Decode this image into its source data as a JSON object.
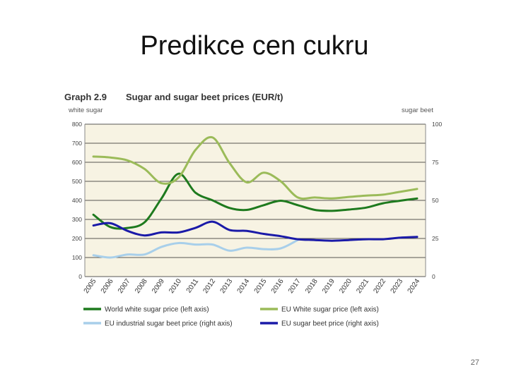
{
  "slide": {
    "title": "Predikce cen cukru",
    "page_number": "27"
  },
  "chart_data": {
    "type": "line",
    "graph_number": "Graph 2.9",
    "title": "Sugar and sugar beet prices (EUR/t)",
    "left_axis_label": "white sugar",
    "right_axis_label": "sugar beet",
    "x": [
      "2005",
      "2006",
      "2007",
      "2008",
      "2009",
      "2010",
      "2011",
      "2012",
      "2013",
      "2014",
      "2015",
      "2016",
      "2017",
      "2018",
      "2019",
      "2020",
      "2021",
      "2022",
      "2023",
      "2024"
    ],
    "ylim_left": [
      0,
      800
    ],
    "yticks_left": [
      "0",
      "100",
      "200",
      "300",
      "400",
      "500",
      "600",
      "700",
      "800"
    ],
    "ylim_right": [
      0,
      100
    ],
    "yticks_right": [
      "0",
      "25",
      "50",
      "75",
      "100"
    ],
    "grid": true,
    "legend_position": "bottom",
    "series": [
      {
        "name": "World white sugar price (left axis)",
        "axis": "left",
        "color": "#1e7a1e",
        "values": [
          325,
          260,
          255,
          285,
          410,
          540,
          440,
          400,
          360,
          350,
          375,
          398,
          375,
          350,
          345,
          352,
          362,
          385,
          398,
          410
        ]
      },
      {
        "name": "EU White sugar price (left axis)",
        "axis": "left",
        "color": "#9bbb59",
        "values": [
          630,
          625,
          610,
          565,
          490,
          520,
          665,
          730,
          595,
          495,
          545,
          500,
          415,
          415,
          410,
          418,
          425,
          430,
          445,
          460
        ]
      },
      {
        "name": "EU industrial sugar beet price (right axis)",
        "axis": "right",
        "color": "#a8cfea",
        "values": [
          14,
          12.5,
          14.5,
          14.5,
          19.5,
          22,
          21,
          21,
          17,
          19,
          18,
          18.5,
          24,
          null,
          null,
          null,
          null,
          null,
          null,
          null
        ]
      },
      {
        "name": "EU sugar beet price (right axis)",
        "axis": "right",
        "color": "#1a1aa8",
        "values": [
          33.5,
          35,
          30,
          27,
          29,
          29,
          32,
          36,
          30.5,
          30,
          28,
          26.5,
          24.5,
          24,
          23.5,
          24,
          24.5,
          24.5,
          25.5,
          26
        ]
      }
    ]
  }
}
